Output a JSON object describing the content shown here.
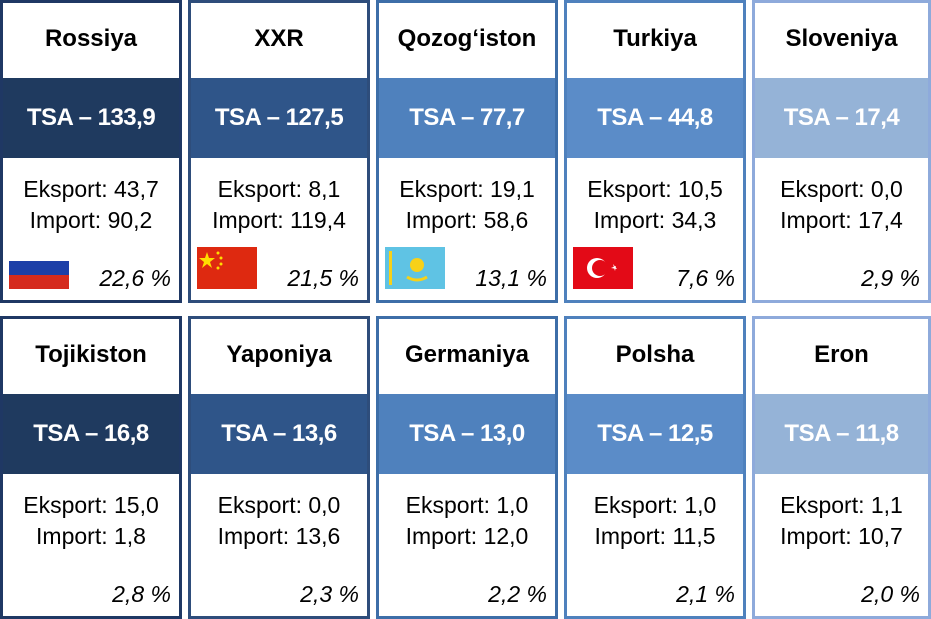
{
  "cards": [
    {
      "country": "Rossiya",
      "tsa": "TSA – 133,9",
      "eksport": "Eksport: 43,7",
      "import": "Import: 90,2",
      "share": "22,6 %"
    },
    {
      "country": "XXR",
      "tsa": "TSA – 127,5",
      "eksport": "Eksport: 8,1",
      "import": "Import: 119,4",
      "share": "21,5 %"
    },
    {
      "country": "Qozog‘iston",
      "tsa": "TSA – 77,7",
      "eksport": "Eksport: 19,1",
      "import": "Import: 58,6",
      "share": "13,1 %"
    },
    {
      "country": "Turkiya",
      "tsa": "TSA – 44,8",
      "eksport": "Eksport: 10,5",
      "import": "Import: 34,3",
      "share": "7,6 %"
    },
    {
      "country": "Sloveniya",
      "tsa": "TSA – 17,4",
      "eksport": "Eksport: 0,0",
      "import": "Import: 17,4",
      "share": "2,9 %"
    },
    {
      "country": "Tojikiston",
      "tsa": "TSA – 16,8",
      "eksport": "Eksport: 15,0",
      "import": "Import: 1,8",
      "share": "2,8 %"
    },
    {
      "country": "Yaponiya",
      "tsa": "TSA – 13,6",
      "eksport": "Eksport: 0,0",
      "import": "Import: 13,6",
      "share": "2,3 %"
    },
    {
      "country": "Germaniya",
      "tsa": "TSA – 13,0",
      "eksport": "Eksport: 1,0",
      "import": "Import: 12,0",
      "share": "2,2 %"
    },
    {
      "country": "Polsha",
      "tsa": "TSA – 12,5",
      "eksport": "Eksport: 1,0",
      "import": "Import: 11,5",
      "share": "2,1 %"
    },
    {
      "country": "Eron",
      "tsa": "TSA – 11,8",
      "eksport": "Eksport: 1,1",
      "import": "Import: 10,7",
      "share": "2,0 %"
    }
  ]
}
